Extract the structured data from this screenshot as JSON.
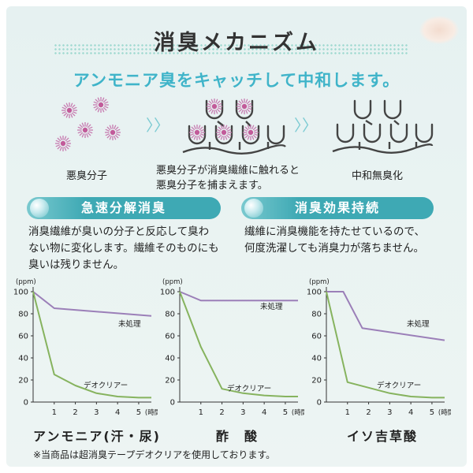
{
  "title": "消臭メカニズム",
  "subtitle": "アンモニア臭をキャッチして中和します。",
  "steps": [
    {
      "label": "悪臭分子"
    },
    {
      "label_line1": "悪臭分子が消臭繊維に触れると",
      "label_line2": "悪臭分子を捕まえます。"
    },
    {
      "label": "中和無臭化"
    }
  ],
  "arrows": "〉〉",
  "features": [
    {
      "heading": "急速分解消臭",
      "lines": [
        "消臭繊維が臭いの分子と反応して臭わ",
        "ない物に変化します。繊維そのものにも",
        "臭いは残りません。"
      ]
    },
    {
      "heading": "消臭効果持続",
      "lines": [
        "繊維に消臭機能を持たせているので、",
        "何度洗濯しても消臭力が落ちません。"
      ]
    }
  ],
  "colors": {
    "accent": "#3fb4c9",
    "untreated": "#9b7fb8",
    "deo": "#86b35e"
  },
  "chart_data": [
    {
      "type": "line",
      "title": "アンモニア(汗・尿)",
      "ylabel": "(ppm)",
      "xunit": "(時間)",
      "yticks": [
        0,
        20,
        40,
        60,
        80,
        100
      ],
      "xticks": [
        1,
        2,
        3,
        4,
        5
      ],
      "ylim": [
        0,
        100
      ],
      "xlim": [
        0,
        5.6
      ],
      "series": [
        {
          "name": "未処理",
          "color": "#9b7fb8",
          "x": [
            0,
            1,
            5.6
          ],
          "y": [
            100,
            85,
            78
          ]
        },
        {
          "name": "デオクリアー",
          "color": "#86b35e",
          "x": [
            0,
            1,
            2,
            3,
            4,
            5,
            5.6
          ],
          "y": [
            100,
            25,
            15,
            8,
            5,
            4,
            4
          ]
        }
      ]
    },
    {
      "type": "line",
      "title": "酢　酸",
      "ylabel": "(ppm)",
      "xunit": "(時間)",
      "yticks": [
        0,
        20,
        40,
        60,
        80,
        100
      ],
      "xticks": [
        1,
        2,
        3,
        4,
        5
      ],
      "ylim": [
        0,
        100
      ],
      "xlim": [
        0,
        5.6
      ],
      "series": [
        {
          "name": "未処理",
          "color": "#9b7fb8",
          "x": [
            0,
            1,
            5.6
          ],
          "y": [
            100,
            92,
            92
          ]
        },
        {
          "name": "デオクリアー",
          "color": "#86b35e",
          "x": [
            0,
            1,
            2,
            3,
            4,
            5,
            5.6
          ],
          "y": [
            100,
            50,
            12,
            8,
            6,
            5,
            5
          ]
        }
      ]
    },
    {
      "type": "line",
      "title": "イソ吉草酸",
      "ylabel": "(ppm)",
      "xunit": "(時間)",
      "yticks": [
        0,
        20,
        40,
        60,
        80,
        100
      ],
      "xticks": [
        1,
        2,
        3,
        4,
        5
      ],
      "ylim": [
        0,
        100
      ],
      "xlim": [
        0,
        5.6
      ],
      "series": [
        {
          "name": "未処理",
          "color": "#9b7fb8",
          "x": [
            0,
            0.8,
            1.7,
            5.6
          ],
          "y": [
            100,
            100,
            67,
            56
          ]
        },
        {
          "name": "デオクリアー",
          "color": "#86b35e",
          "x": [
            0,
            1,
            2,
            3,
            4,
            5,
            5.6
          ],
          "y": [
            100,
            18,
            13,
            8,
            5,
            4,
            4
          ]
        }
      ]
    }
  ],
  "note": "※当商品は超消臭テープデオクリアを使用しております。"
}
